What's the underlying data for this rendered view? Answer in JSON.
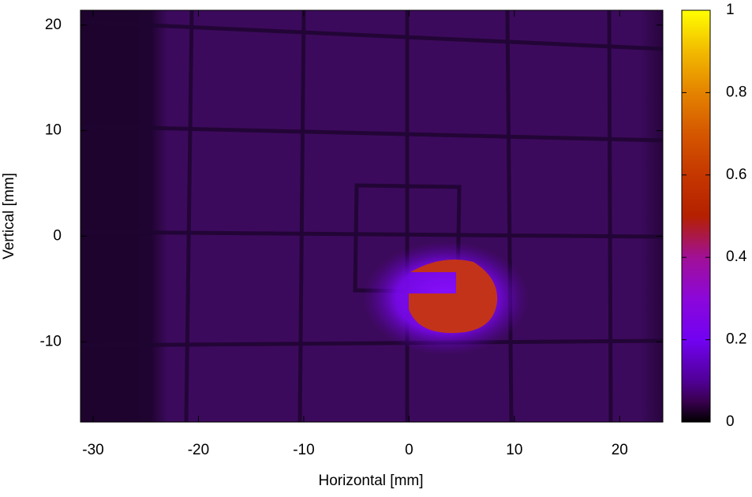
{
  "chart_data": {
    "type": "heatmap",
    "x_label": "Horizontal [mm]",
    "y_label": "Vertical [mm]",
    "xlim": [
      -31.2,
      24.1
    ],
    "xticks": [
      -30,
      -20,
      -10,
      0,
      10,
      20
    ],
    "ylim": [
      -17.6,
      21.4
    ],
    "yticks": [
      -10,
      0,
      10,
      20
    ],
    "colorbar": {
      "lim": [
        0,
        1
      ],
      "ticks": [
        0,
        0.2,
        0.4,
        0.6,
        0.8,
        1
      ]
    }
  }
}
